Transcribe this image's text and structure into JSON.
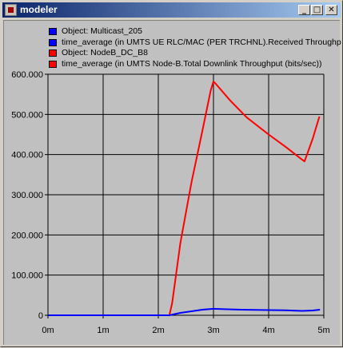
{
  "window": {
    "title": "modeler",
    "buttons": {
      "minimize": "_",
      "maximize": "□",
      "close": "✕"
    }
  },
  "legend": [
    {
      "label": "Object: Multicast_205",
      "color": "#0000ff"
    },
    {
      "label": "time_average (in UMTS UE RLC/MAC (PER TRCHNL).Received Throughput",
      "color": "#0000ff"
    },
    {
      "label": "Object: NodeB_DC_B8",
      "color": "#ff0000"
    },
    {
      "label": "time_average (in UMTS Node-B.Total Downlink Throughput (bits/sec))",
      "color": "#ff0000"
    }
  ],
  "chart_data": {
    "type": "line",
    "xlim": [
      0,
      5
    ],
    "ylim": [
      0,
      600000
    ],
    "xticks": [
      0,
      1,
      2,
      3,
      4,
      5
    ],
    "xtick_labels": [
      "0m",
      "1m",
      "2m",
      "3m",
      "4m",
      "5m"
    ],
    "yticks": [
      0,
      100000,
      200000,
      300000,
      400000,
      500000,
      600000
    ],
    "ytick_labels": [
      "0",
      "100.000",
      "200.000",
      "300.000",
      "400.000",
      "500.000",
      "600.000"
    ],
    "grid": true,
    "series": [
      {
        "color": "#ff0000",
        "x": [
          0.5,
          1.0,
          1.5,
          2.0,
          2.2,
          2.25,
          2.4,
          2.6,
          2.8,
          2.95,
          3.0,
          3.05,
          3.3,
          3.6,
          4.0,
          4.3,
          4.6,
          4.65,
          4.8,
          4.92
        ],
        "y": [
          0,
          0,
          0,
          0,
          0,
          30000,
          180000,
          330000,
          460000,
          560000,
          582000,
          575000,
          535000,
          493000,
          450000,
          420000,
          388000,
          383000,
          440000,
          495000
        ]
      },
      {
        "color": "#0000ff",
        "x": [
          0.0,
          0.5,
          1.0,
          1.5,
          2.0,
          2.2,
          2.4,
          2.6,
          2.8,
          3.0,
          3.2,
          3.5,
          4.0,
          4.3,
          4.6,
          4.8,
          4.93
        ],
        "y": [
          0,
          0,
          0,
          0,
          0,
          0,
          6000,
          10000,
          14000,
          16000,
          15000,
          14000,
          13000,
          12500,
          11000,
          12000,
          14000
        ]
      }
    ]
  }
}
